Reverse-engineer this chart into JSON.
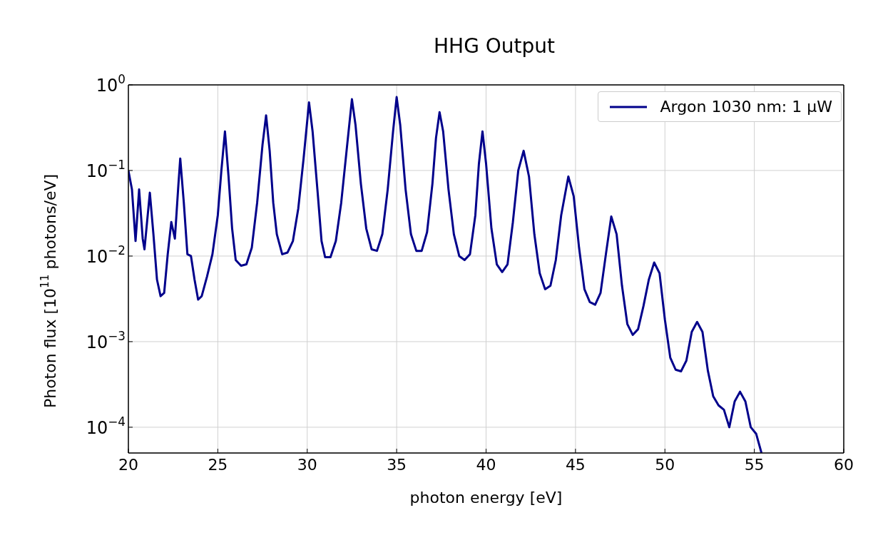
{
  "chart_data": {
    "type": "line",
    "title": "HHG Output",
    "xlabel": "photon energy [eV]",
    "ylabel": "Photon flux [10$^{11}$ photons/eV]",
    "log": "y",
    "grid": true,
    "legend": "top right",
    "marker": "none",
    "line_style": "solid",
    "xlim": [
      20,
      60
    ],
    "xticks": [
      20,
      25,
      30,
      35,
      40,
      45,
      50,
      55,
      60
    ],
    "ylim": [
      5e-05,
      1
    ],
    "yticks": [
      {
        "value": 0.0001,
        "label": "10$^{−4}$"
      },
      {
        "value": 0.001,
        "label": "10$^{−3}$"
      },
      {
        "value": 0.01,
        "label": "10$^{−2}$"
      },
      {
        "value": 0.1,
        "label": "10$^{−1}$"
      },
      {
        "value": 1,
        "label": "10$^{0}$"
      }
    ],
    "x": [
      20.0,
      20.2,
      20.4,
      20.6,
      20.8,
      20.9,
      21.2,
      21.4,
      21.6,
      21.8,
      22.0,
      22.2,
      22.4,
      22.6,
      22.8,
      22.9,
      23.1,
      23.3,
      23.5,
      23.7,
      23.9,
      24.1,
      24.4,
      24.7,
      25.0,
      25.2,
      25.4,
      25.6,
      25.8,
      26.0,
      26.3,
      26.6,
      26.9,
      27.2,
      27.5,
      27.7,
      27.9,
      28.1,
      28.3,
      28.6,
      28.9,
      29.2,
      29.5,
      29.8,
      30.1,
      30.3,
      30.6,
      30.8,
      31.0,
      31.3,
      31.6,
      31.9,
      32.2,
      32.5,
      32.7,
      33.0,
      33.3,
      33.6,
      33.9,
      34.2,
      34.5,
      34.8,
      35.0,
      35.2,
      35.5,
      35.8,
      36.1,
      36.4,
      36.7,
      37.0,
      37.2,
      37.4,
      37.6,
      37.9,
      38.2,
      38.5,
      38.8,
      39.1,
      39.4,
      39.6,
      39.8,
      40.0,
      40.3,
      40.6,
      40.9,
      41.2,
      41.5,
      41.8,
      42.1,
      42.4,
      42.7,
      43.0,
      43.3,
      43.6,
      43.9,
      44.2,
      44.6,
      44.9,
      45.2,
      45.5,
      45.8,
      46.1,
      46.4,
      46.7,
      47.0,
      47.3,
      47.6,
      47.9,
      48.2,
      48.5,
      48.8,
      49.1,
      49.4,
      49.7,
      50.0,
      50.3,
      50.6,
      50.9,
      51.2,
      51.5,
      51.8,
      52.1,
      52.4,
      52.7,
      53.0,
      53.3,
      53.6,
      53.9,
      54.2,
      54.5,
      54.8,
      55.1,
      55.4
    ],
    "series": [
      {
        "name": "Argon 1030 nm: 1 μW",
        "color": "#00008b",
        "values": [
          0.1,
          0.06,
          0.015,
          0.06,
          0.016,
          0.012,
          0.055,
          0.018,
          0.0053,
          0.0034,
          0.0037,
          0.0105,
          0.025,
          0.016,
          0.07,
          0.138,
          0.042,
          0.0105,
          0.01,
          0.0053,
          0.0031,
          0.0034,
          0.0058,
          0.0105,
          0.03,
          0.1,
          0.286,
          0.085,
          0.021,
          0.009,
          0.0077,
          0.008,
          0.0125,
          0.042,
          0.2,
          0.44,
          0.17,
          0.042,
          0.018,
          0.0105,
          0.011,
          0.015,
          0.036,
          0.14,
          0.625,
          0.286,
          0.05,
          0.015,
          0.0097,
          0.0097,
          0.015,
          0.042,
          0.17,
          0.68,
          0.34,
          0.07,
          0.021,
          0.012,
          0.0115,
          0.018,
          0.06,
          0.286,
          0.72,
          0.34,
          0.06,
          0.018,
          0.0115,
          0.0115,
          0.019,
          0.07,
          0.24,
          0.48,
          0.286,
          0.06,
          0.018,
          0.01,
          0.009,
          0.0105,
          0.03,
          0.12,
          0.286,
          0.12,
          0.021,
          0.008,
          0.0065,
          0.008,
          0.025,
          0.1,
          0.17,
          0.085,
          0.018,
          0.0063,
          0.0041,
          0.0045,
          0.009,
          0.03,
          0.085,
          0.05,
          0.0125,
          0.0041,
          0.0029,
          0.0027,
          0.0037,
          0.0105,
          0.029,
          0.018,
          0.0045,
          0.0016,
          0.0012,
          0.0014,
          0.0026,
          0.0053,
          0.0084,
          0.0063,
          0.0018,
          0.00065,
          0.00047,
          0.00045,
          0.0006,
          0.0013,
          0.0017,
          0.0013,
          0.00046,
          0.00023,
          0.00018,
          0.00016,
          0.0001,
          0.0002,
          0.00026,
          0.0002,
          0.0001,
          8.4e-05,
          5e-05
        ]
      }
    ]
  }
}
